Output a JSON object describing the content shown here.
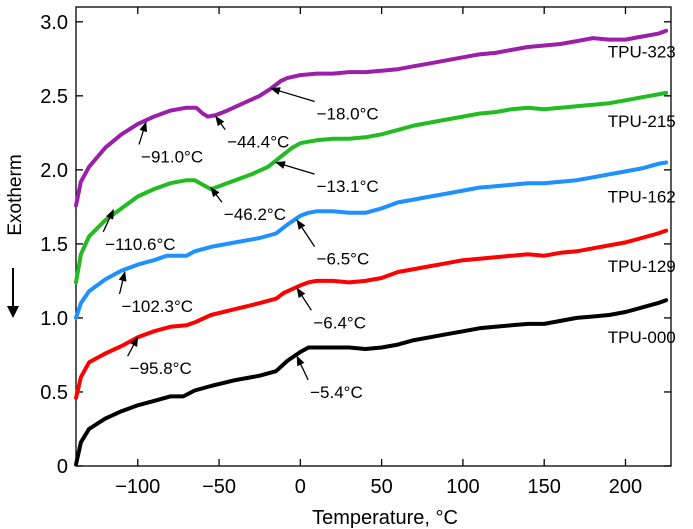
{
  "chart_data": {
    "type": "line",
    "xlabel": "Temperature, °C",
    "ylabel": "Exotherm",
    "xlim": [
      -138,
      228
    ],
    "ylim": [
      0,
      3.1
    ],
    "xticks": [
      -100,
      -50,
      0,
      50,
      100,
      150,
      200
    ],
    "xtick_labels": [
      "−100",
      "−50",
      "0",
      "50",
      "100",
      "150",
      "200"
    ],
    "yticks": [
      0,
      0.5,
      1.0,
      1.5,
      2.0,
      2.5,
      3.0
    ],
    "ytick_labels": [
      "0",
      "0.5",
      "1.0",
      "1.5",
      "2.0",
      "2.5",
      "3.0"
    ],
    "grid": false,
    "legend": "labels-at-right-end-of-each-curve",
    "series": [
      {
        "name": "TPU-000",
        "color": "#000000",
        "x": [
          -138,
          -135,
          -130,
          -120,
          -110,
          -100,
          -90,
          -80,
          -72,
          -65,
          -55,
          -40,
          -25,
          -15,
          -8,
          0,
          5,
          10,
          20,
          30,
          40,
          50,
          60,
          70,
          80,
          90,
          100,
          110,
          120,
          130,
          140,
          150,
          160,
          170,
          180,
          190,
          200,
          210,
          220,
          225
        ],
        "y": [
          0.01,
          0.16,
          0.25,
          0.32,
          0.37,
          0.41,
          0.44,
          0.47,
          0.47,
          0.51,
          0.54,
          0.58,
          0.61,
          0.64,
          0.71,
          0.77,
          0.8,
          0.8,
          0.8,
          0.8,
          0.79,
          0.8,
          0.82,
          0.85,
          0.87,
          0.89,
          0.91,
          0.93,
          0.94,
          0.95,
          0.96,
          0.96,
          0.98,
          1.0,
          1.01,
          1.02,
          1.04,
          1.07,
          1.1,
          1.12
        ]
      },
      {
        "name": "TPU-129",
        "color": "#ff0000",
        "x": [
          -138,
          -135,
          -130,
          -120,
          -110,
          -100,
          -90,
          -80,
          -70,
          -65,
          -55,
          -40,
          -25,
          -15,
          -10,
          0,
          5,
          10,
          20,
          30,
          40,
          50,
          60,
          70,
          80,
          90,
          100,
          110,
          120,
          130,
          140,
          150,
          160,
          170,
          180,
          190,
          200,
          210,
          220,
          225
        ],
        "y": [
          0.46,
          0.6,
          0.7,
          0.76,
          0.81,
          0.87,
          0.91,
          0.94,
          0.95,
          0.97,
          1.02,
          1.06,
          1.1,
          1.13,
          1.17,
          1.22,
          1.24,
          1.25,
          1.25,
          1.24,
          1.25,
          1.27,
          1.31,
          1.33,
          1.35,
          1.37,
          1.39,
          1.4,
          1.41,
          1.42,
          1.43,
          1.42,
          1.44,
          1.45,
          1.47,
          1.49,
          1.51,
          1.54,
          1.57,
          1.59
        ]
      },
      {
        "name": "TPU-162",
        "color": "#1e90ff",
        "x": [
          -138,
          -135,
          -130,
          -120,
          -110,
          -100,
          -90,
          -82,
          -70,
          -65,
          -55,
          -40,
          -25,
          -15,
          -8,
          0,
          5,
          10,
          20,
          30,
          40,
          50,
          60,
          70,
          80,
          90,
          100,
          110,
          120,
          130,
          140,
          150,
          160,
          170,
          180,
          190,
          200,
          210,
          220,
          225
        ],
        "y": [
          1.0,
          1.1,
          1.18,
          1.26,
          1.32,
          1.36,
          1.39,
          1.42,
          1.42,
          1.45,
          1.48,
          1.51,
          1.54,
          1.57,
          1.63,
          1.69,
          1.71,
          1.72,
          1.72,
          1.71,
          1.71,
          1.74,
          1.78,
          1.8,
          1.82,
          1.84,
          1.86,
          1.88,
          1.89,
          1.9,
          1.91,
          1.91,
          1.92,
          1.93,
          1.95,
          1.97,
          1.99,
          2.01,
          2.04,
          2.05
        ]
      },
      {
        "name": "TPU-215",
        "color": "#22bb22",
        "x": [
          -138,
          -135,
          -130,
          -120,
          -110,
          -100,
          -90,
          -80,
          -70,
          -65,
          -60,
          -55,
          -50,
          -40,
          -30,
          -20,
          -13,
          -5,
          0,
          5,
          10,
          20,
          30,
          40,
          50,
          60,
          70,
          80,
          90,
          100,
          110,
          120,
          130,
          140,
          150,
          160,
          170,
          180,
          190,
          200,
          210,
          220,
          225
        ],
        "y": [
          1.24,
          1.43,
          1.55,
          1.66,
          1.74,
          1.82,
          1.87,
          1.91,
          1.93,
          1.93,
          1.9,
          1.87,
          1.89,
          1.93,
          1.97,
          2.02,
          2.08,
          2.15,
          2.18,
          2.19,
          2.2,
          2.21,
          2.21,
          2.22,
          2.24,
          2.27,
          2.3,
          2.32,
          2.34,
          2.36,
          2.38,
          2.39,
          2.41,
          2.42,
          2.41,
          2.42,
          2.43,
          2.44,
          2.45,
          2.47,
          2.49,
          2.51,
          2.52
        ]
      },
      {
        "name": "TPU-323",
        "color": "#9b1fa8",
        "x": [
          -138,
          -135,
          -130,
          -120,
          -110,
          -100,
          -90,
          -80,
          -70,
          -64,
          -60,
          -57,
          -52,
          -45,
          -35,
          -25,
          -18,
          -12,
          -8,
          0,
          10,
          20,
          30,
          40,
          50,
          60,
          70,
          80,
          90,
          100,
          110,
          120,
          130,
          140,
          150,
          160,
          170,
          180,
          190,
          200,
          210,
          220,
          225
        ],
        "y": [
          1.76,
          1.92,
          2.02,
          2.15,
          2.24,
          2.31,
          2.36,
          2.4,
          2.42,
          2.42,
          2.38,
          2.36,
          2.37,
          2.4,
          2.45,
          2.5,
          2.55,
          2.6,
          2.62,
          2.64,
          2.65,
          2.65,
          2.66,
          2.66,
          2.67,
          2.68,
          2.7,
          2.72,
          2.74,
          2.76,
          2.78,
          2.79,
          2.81,
          2.83,
          2.84,
          2.85,
          2.87,
          2.89,
          2.88,
          2.88,
          2.9,
          2.92,
          2.94
        ]
      }
    ],
    "annotations": [
      {
        "text": "−91.0°C",
        "x": -95,
        "y": 2.32,
        "label_x": -98,
        "label_y": 2.05,
        "color": "#000000"
      },
      {
        "text": "−44.4°C",
        "x": -52,
        "y": 2.36,
        "label_x": -45,
        "label_y": 2.15,
        "color": "#000000"
      },
      {
        "text": "−18.0°C",
        "x": -18,
        "y": 2.55,
        "label_x": 10,
        "label_y": 2.34,
        "color": "#000000"
      },
      {
        "text": "−110.6°C",
        "x": -115,
        "y": 1.73,
        "label_x": -120,
        "label_y": 1.46,
        "color": "#000000"
      },
      {
        "text": "−46.2°C",
        "x": -55,
        "y": 1.88,
        "label_x": -47,
        "label_y": 1.66,
        "color": "#000000"
      },
      {
        "text": "−13.1°C",
        "x": -15,
        "y": 2.05,
        "label_x": 10,
        "label_y": 1.85,
        "color": "#000000"
      },
      {
        "text": "−102.3°C",
        "x": -108,
        "y": 1.31,
        "label_x": -110,
        "label_y": 1.04,
        "color": "#000000"
      },
      {
        "text": "−6.5°C",
        "x": -2,
        "y": 1.66,
        "label_x": 10,
        "label_y": 1.36,
        "color": "#000000"
      },
      {
        "text": "−95.8°C",
        "x": -100,
        "y": 0.87,
        "label_x": -105,
        "label_y": 0.62,
        "color": "#000000"
      },
      {
        "text": "−6.4°C",
        "x": -2,
        "y": 1.2,
        "label_x": 8,
        "label_y": 0.93,
        "color": "#000000"
      },
      {
        "text": "−5.4°C",
        "x": -2,
        "y": 0.74,
        "label_x": 6,
        "label_y": 0.46,
        "color": "#000000"
      }
    ],
    "series_labels": [
      {
        "text": "TPU-323",
        "x": 210,
        "y": 2.76
      },
      {
        "text": "TPU-215",
        "x": 210,
        "y": 2.29
      },
      {
        "text": "TPU-162",
        "x": 210,
        "y": 1.78
      },
      {
        "text": "TPU-129",
        "x": 210,
        "y": 1.31
      },
      {
        "text": "TPU-000",
        "x": 210,
        "y": 0.83
      }
    ]
  }
}
